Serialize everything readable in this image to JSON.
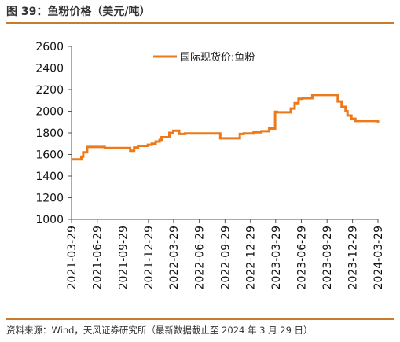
{
  "header": {
    "title": "图 39：鱼粉价格（美元/吨）"
  },
  "footer": {
    "source": "资料来源：Wind，天风证券研究所（最新数据截止至 2024 年 3 月 29 日）"
  },
  "colors": {
    "accent": "#c87a2e",
    "line": "#ec7a1c"
  },
  "chart_data": {
    "type": "line",
    "title": "",
    "xlabel": "",
    "ylabel": "",
    "ylim": [
      1000,
      2600
    ],
    "yticks": [
      "1000",
      "1200",
      "1400",
      "1600",
      "1800",
      "2000",
      "2200",
      "2400",
      "2600"
    ],
    "xticks": [
      "2021-03-29",
      "2021-06-29",
      "2021-09-29",
      "2021-12-29",
      "2022-03-29",
      "2022-06-29",
      "2022-09-29",
      "2022-12-29",
      "2023-03-29",
      "2023-06-29",
      "2023-09-29",
      "2023-12-29",
      "2024-03-29"
    ],
    "grid": false,
    "legend": "top-center",
    "series": [
      {
        "name": "国际现货价:鱼粉",
        "x": [
          "2021-03-29",
          "2021-04-26",
          "2021-05-03",
          "2021-05-10",
          "2021-05-24",
          "2021-07-26",
          "2021-10-25",
          "2021-11-08",
          "2021-11-22",
          "2021-12-27",
          "2022-01-10",
          "2022-01-24",
          "2022-02-07",
          "2022-02-14",
          "2022-03-14",
          "2022-03-28",
          "2022-04-18",
          "2022-05-09",
          "2022-09-12",
          "2022-11-21",
          "2022-12-05",
          "2023-01-09",
          "2023-02-06",
          "2023-03-06",
          "2023-03-27",
          "2023-04-03",
          "2023-05-22",
          "2023-06-05",
          "2023-06-19",
          "2023-07-03",
          "2023-08-07",
          "2023-11-06",
          "2023-11-20",
          "2023-12-04",
          "2023-12-11",
          "2023-12-25",
          "2024-01-08",
          "2024-01-15",
          "2024-03-25",
          "2024-03-29"
        ],
        "y": [
          1555,
          1555,
          1580,
          1620,
          1670,
          1660,
          1635,
          1665,
          1680,
          1690,
          1700,
          1720,
          1735,
          1760,
          1800,
          1820,
          1790,
          1795,
          1750,
          1790,
          1795,
          1805,
          1815,
          1840,
          1995,
          1990,
          2025,
          2075,
          2115,
          2120,
          2150,
          2090,
          2040,
          2000,
          1960,
          1930,
          1910,
          1910,
          1910,
          1895
        ]
      }
    ]
  }
}
